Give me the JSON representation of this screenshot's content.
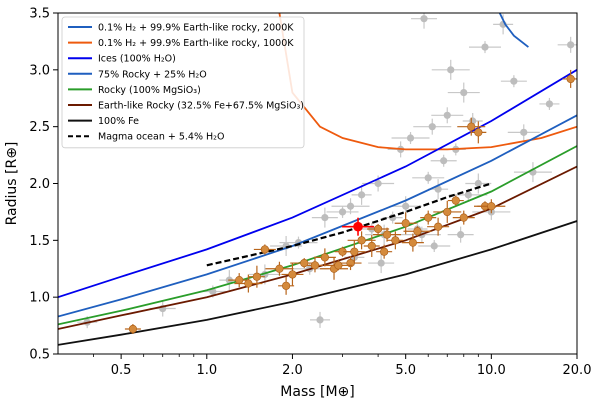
{
  "chart_data": {
    "type": "scatter",
    "xlabel": "Mass [M⊕]",
    "ylabel": "Radius [R⊕]",
    "xscale": "log",
    "xlim": [
      0.3,
      20.0
    ],
    "ylim": [
      0.5,
      3.5
    ],
    "x_ticks": [
      0.5,
      1.0,
      2.0,
      5.0,
      10.0,
      20.0
    ],
    "x_tick_labels": [
      "0.5",
      "1.0",
      "2.0",
      "5.0",
      "10.0",
      "20.0"
    ],
    "y_ticks": [
      0.5,
      1.0,
      1.5,
      2.0,
      2.5,
      3.0,
      3.5
    ],
    "y_tick_labels": [
      "0.5",
      "1.0",
      "1.5",
      "2.0",
      "2.5",
      "3.0",
      "3.5"
    ],
    "grid": false,
    "legend_position": "top-left",
    "series": [
      {
        "name": "0.1% H₂ + 99.9% Earth-like rocky, 2000K",
        "color": "#1f5fbf",
        "dash": "solid",
        "x": [
          10.7,
          11.2,
          12.0,
          13.5
        ],
        "y": [
          3.5,
          3.4,
          3.3,
          3.2
        ]
      },
      {
        "name": "0.1% H₂ + 99.9% Earth-like rocky, 1000K",
        "color": "#ee5a0e",
        "dash": "solid",
        "x": [
          1.8,
          2.0,
          2.5,
          3.0,
          4.0,
          5.0,
          7.0,
          10.0,
          15.0,
          20.0
        ],
        "y": [
          3.5,
          2.8,
          2.5,
          2.4,
          2.32,
          2.3,
          2.3,
          2.32,
          2.4,
          2.5
        ]
      },
      {
        "name": "Ices (100% H₂O)",
        "color": "#0000ee",
        "dash": "solid",
        "x": [
          0.3,
          0.5,
          1.0,
          2.0,
          5.0,
          10.0,
          20.0
        ],
        "y": [
          1.0,
          1.18,
          1.42,
          1.7,
          2.15,
          2.55,
          3.0
        ]
      },
      {
        "name": "75% Rocky + 25% H₂O",
        "color": "#1f5fbf",
        "dash": "solid",
        "x": [
          0.3,
          0.5,
          1.0,
          2.0,
          5.0,
          10.0,
          20.0
        ],
        "y": [
          0.83,
          0.98,
          1.2,
          1.45,
          1.85,
          2.2,
          2.6
        ]
      },
      {
        "name": "Rocky (100% MgSiO₃)",
        "color": "#2a9d2a",
        "dash": "solid",
        "x": [
          0.3,
          0.5,
          1.0,
          2.0,
          5.0,
          10.0,
          20.0
        ],
        "y": [
          0.76,
          0.88,
          1.06,
          1.28,
          1.62,
          1.93,
          2.33
        ]
      },
      {
        "name": "Earth-like Rocky (32.5% Fe+67.5% MgSiO₃)",
        "color": "#6b1a00",
        "dash": "solid",
        "x": [
          0.3,
          0.5,
          1.0,
          2.0,
          5.0,
          10.0,
          20.0
        ],
        "y": [
          0.72,
          0.84,
          1.0,
          1.2,
          1.5,
          1.78,
          2.15
        ]
      },
      {
        "name": "100% Fe",
        "color": "#111111",
        "dash": "solid",
        "x": [
          0.3,
          0.5,
          1.0,
          2.0,
          5.0,
          10.0,
          20.0
        ],
        "y": [
          0.58,
          0.67,
          0.8,
          0.96,
          1.2,
          1.42,
          1.67
        ]
      },
      {
        "name": "Magma ocean + 5.4% H₂O",
        "color": "#000000",
        "dash": "dashed",
        "x": [
          1.0,
          2.0,
          3.0,
          5.0,
          7.0,
          10.0
        ],
        "y": [
          1.28,
          1.45,
          1.57,
          1.75,
          1.88,
          2.0
        ]
      }
    ],
    "points_gray": [
      {
        "x": 0.38,
        "y": 0.78
      },
      {
        "x": 0.7,
        "y": 0.9
      },
      {
        "x": 1.9,
        "y": 1.45
      },
      {
        "x": 2.1,
        "y": 1.48
      },
      {
        "x": 2.5,
        "y": 0.8
      },
      {
        "x": 2.6,
        "y": 1.7
      },
      {
        "x": 3.0,
        "y": 1.75
      },
      {
        "x": 3.2,
        "y": 1.8
      },
      {
        "x": 3.5,
        "y": 1.9
      },
      {
        "x": 3.8,
        "y": 1.6
      },
      {
        "x": 4.0,
        "y": 2.0
      },
      {
        "x": 4.2,
        "y": 1.55
      },
      {
        "x": 4.5,
        "y": 1.7
      },
      {
        "x": 4.8,
        "y": 2.3
      },
      {
        "x": 5.0,
        "y": 1.8
      },
      {
        "x": 5.2,
        "y": 2.4
      },
      {
        "x": 5.5,
        "y": 1.6
      },
      {
        "x": 5.8,
        "y": 3.45
      },
      {
        "x": 6.0,
        "y": 2.05
      },
      {
        "x": 6.2,
        "y": 2.5
      },
      {
        "x": 6.5,
        "y": 1.95
      },
      {
        "x": 6.8,
        "y": 2.2
      },
      {
        "x": 7.0,
        "y": 2.6
      },
      {
        "x": 7.2,
        "y": 3.0
      },
      {
        "x": 7.5,
        "y": 2.3
      },
      {
        "x": 7.8,
        "y": 1.55
      },
      {
        "x": 8.0,
        "y": 2.8
      },
      {
        "x": 8.3,
        "y": 1.9
      },
      {
        "x": 8.6,
        "y": 2.55
      },
      {
        "x": 9.0,
        "y": 2.0
      },
      {
        "x": 9.5,
        "y": 3.2
      },
      {
        "x": 10.0,
        "y": 1.75
      },
      {
        "x": 11.0,
        "y": 3.4
      },
      {
        "x": 12.0,
        "y": 2.9
      },
      {
        "x": 13.0,
        "y": 2.45
      },
      {
        "x": 14.0,
        "y": 2.1
      },
      {
        "x": 16.0,
        "y": 2.7
      },
      {
        "x": 19.0,
        "y": 3.22
      },
      {
        "x": 1.6,
        "y": 1.2
      },
      {
        "x": 2.3,
        "y": 1.25
      },
      {
        "x": 3.3,
        "y": 1.35
      },
      {
        "x": 4.1,
        "y": 1.3
      },
      {
        "x": 6.3,
        "y": 1.45
      },
      {
        "x": 5.7,
        "y": 1.55
      },
      {
        "x": 1.2,
        "y": 1.15
      },
      {
        "x": 1.05,
        "y": 1.05
      }
    ],
    "points_orange": [
      {
        "x": 0.55,
        "y": 0.72
      },
      {
        "x": 1.3,
        "y": 1.15
      },
      {
        "x": 1.4,
        "y": 1.12
      },
      {
        "x": 1.5,
        "y": 1.18
      },
      {
        "x": 1.6,
        "y": 1.42
      },
      {
        "x": 1.8,
        "y": 1.25
      },
      {
        "x": 1.9,
        "y": 1.1
      },
      {
        "x": 2.0,
        "y": 1.2
      },
      {
        "x": 2.2,
        "y": 1.3
      },
      {
        "x": 2.4,
        "y": 1.28
      },
      {
        "x": 2.6,
        "y": 1.35
      },
      {
        "x": 2.8,
        "y": 1.25
      },
      {
        "x": 3.0,
        "y": 1.4
      },
      {
        "x": 3.2,
        "y": 1.3
      },
      {
        "x": 3.5,
        "y": 1.5
      },
      {
        "x": 3.8,
        "y": 1.45
      },
      {
        "x": 4.0,
        "y": 1.6
      },
      {
        "x": 4.3,
        "y": 1.55
      },
      {
        "x": 4.6,
        "y": 1.5
      },
      {
        "x": 5.0,
        "y": 1.65
      },
      {
        "x": 5.5,
        "y": 1.58
      },
      {
        "x": 6.0,
        "y": 1.7
      },
      {
        "x": 6.5,
        "y": 1.62
      },
      {
        "x": 7.0,
        "y": 1.75
      },
      {
        "x": 7.5,
        "y": 1.85
      },
      {
        "x": 8.0,
        "y": 1.7
      },
      {
        "x": 8.5,
        "y": 2.5
      },
      {
        "x": 9.0,
        "y": 2.45
      },
      {
        "x": 9.5,
        "y": 1.8
      },
      {
        "x": 10.0,
        "y": 1.8
      },
      {
        "x": 19.0,
        "y": 2.92
      },
      {
        "x": 3.3,
        "y": 1.4
      },
      {
        "x": 2.9,
        "y": 1.28
      },
      {
        "x": 4.2,
        "y": 1.4
      },
      {
        "x": 5.3,
        "y": 1.48
      }
    ],
    "highlight_point": {
      "x": 3.4,
      "y": 1.62,
      "color": "#ff0000"
    }
  }
}
